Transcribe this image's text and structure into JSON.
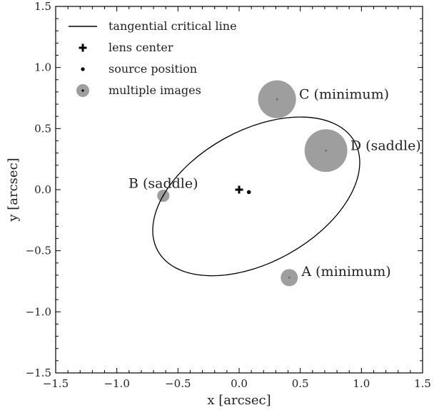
{
  "chart_data": {
    "type": "scatter",
    "title": "",
    "xlabel": "x [arcsec]",
    "ylabel": "y [arcsec]",
    "xlim": [
      -1.5,
      1.5
    ],
    "ylim": [
      -1.5,
      1.5
    ],
    "x_ticks": [
      -1.5,
      -1.0,
      -0.5,
      0.0,
      0.5,
      1.0,
      1.5
    ],
    "y_ticks": [
      -1.5,
      -1.0,
      -0.5,
      0.0,
      0.5,
      1.0,
      1.5
    ],
    "x_tick_labels": [
      "−1.5",
      "−1.0",
      "−0.5",
      "0.0",
      "0.5",
      "1.0",
      "1.5"
    ],
    "y_tick_labels": [
      "−1.5",
      "−1.0",
      "−0.5",
      "0.0",
      "0.5",
      "1.0",
      "1.5"
    ],
    "grid": false,
    "legend_position": "top-left",
    "legend": [
      {
        "label": "tangential critical line",
        "marker": "line"
      },
      {
        "label": "lens center",
        "marker": "plus"
      },
      {
        "label": "source position",
        "marker": "dot"
      },
      {
        "label": "multiple images",
        "marker": "circle"
      }
    ],
    "critical_line": {
      "center": [
        0.14,
        -0.055
      ],
      "semi_major": 0.92,
      "semi_minor": 0.54,
      "angle_deg": 29
    },
    "lens_center": {
      "x": 0.0,
      "y": 0.0
    },
    "source_position": {
      "x": 0.08,
      "y": -0.02
    },
    "images": [
      {
        "label": "A (minimum)",
        "x": 0.41,
        "y": -0.72,
        "radius": 0.07
      },
      {
        "label": "B (saddle)",
        "x": -0.62,
        "y": -0.05,
        "radius": 0.05
      },
      {
        "label": "C (minimum)",
        "x": 0.31,
        "y": 0.74,
        "radius": 0.155
      },
      {
        "label": "D (saddle)",
        "x": 0.71,
        "y": 0.32,
        "radius": 0.175
      }
    ],
    "colors": {
      "image_fill": "#9e9e9e",
      "line": "#000000",
      "marker": "#000000"
    }
  }
}
